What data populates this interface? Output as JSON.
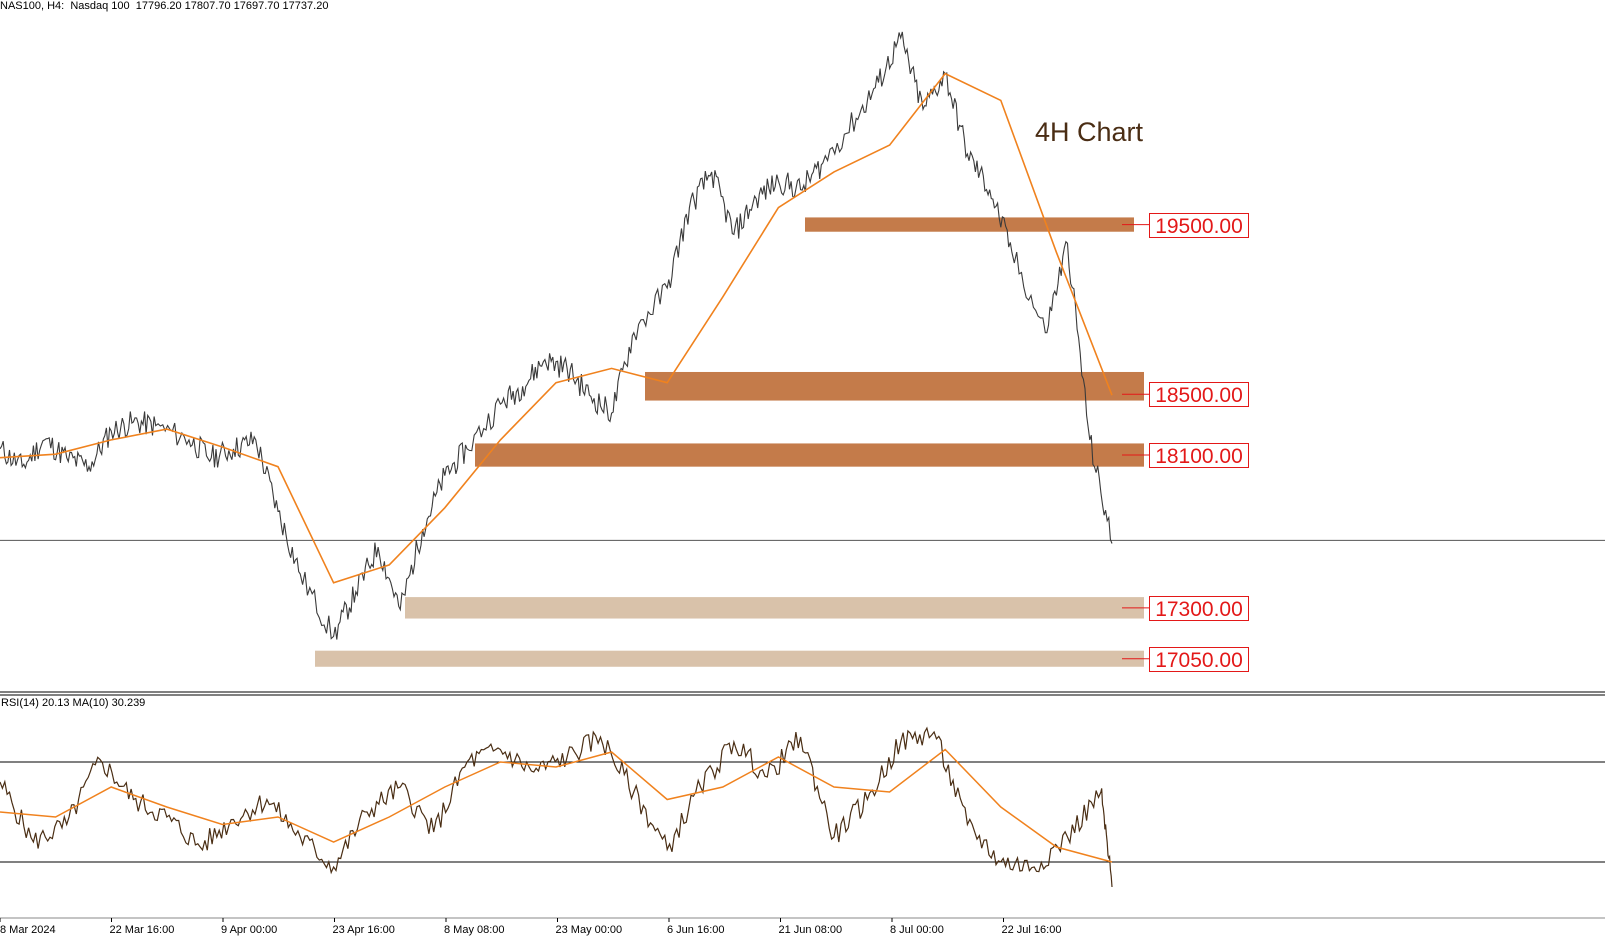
{
  "chart_header": {
    "symbol_line": "NAS100, H4:  Nasdaq 100  17796.20 17807.70 17697.70 17737.20"
  },
  "annotation": {
    "title": "4H Chart"
  },
  "colors": {
    "zone_dark": "#c47b4a",
    "zone_light": "#d9c2aa",
    "price": "#3a3a3a",
    "ma": "#f0821e",
    "rsi": "#4a2e14",
    "rsi_ma": "#f0821e",
    "level_label": "#e31818"
  },
  "chart_data": [
    {
      "type": "line",
      "name": "price",
      "title": "NAS100, H4: Nasdaq 100",
      "ohlc_last": {
        "open": 17796.2,
        "high": 17807.7,
        "low": 17697.7,
        "close": 17737.2
      },
      "x_ticks": [
        "8 Mar 2024",
        "22 Mar 16:00",
        "9 Apr 00:00",
        "23 Apr 16:00",
        "8 May 08:00",
        "23 May 00:00",
        "6 Jun 16:00",
        "21 Jun 08:00",
        "8 Jul 00:00",
        "22 Jul 16:00"
      ],
      "ylim": [
        16900,
        20650
      ],
      "current_price_line": 17737.2,
      "zones": [
        {
          "label": "19500.00",
          "low": 19465,
          "high": 19545,
          "tone": "dark"
        },
        {
          "label": "18500.00",
          "low": 18520,
          "high": 18680,
          "tone": "dark"
        },
        {
          "label": "18100.00",
          "low": 18150,
          "high": 18280,
          "tone": "dark"
        },
        {
          "label": "17300.00",
          "low": 17300,
          "high": 17420,
          "tone": "light"
        },
        {
          "label": "17050.00",
          "low": 17030,
          "high": 17120,
          "tone": "light"
        }
      ],
      "series": [
        {
          "x": [
            0,
            0.02,
            0.04,
            0.06,
            0.08,
            0.1,
            0.12,
            0.14,
            0.17,
            0.19,
            0.21,
            0.23,
            0.25,
            0.27,
            0.3,
            0.32,
            0.34,
            0.36,
            0.38,
            0.4,
            0.42,
            0.45,
            0.47,
            0.49,
            0.51,
            0.53,
            0.55,
            0.57,
            0.6,
            0.62,
            0.64,
            0.66,
            0.68,
            0.7,
            0.72,
            0.74,
            0.77,
            0.79,
            0.81,
            0.83,
            0.85,
            0.87,
            0.89,
            0.91,
            0.94,
            0.96,
            0.98,
            1.0
          ],
          "values": [
            18250,
            18150,
            18300,
            18200,
            18150,
            18350,
            18400,
            18380,
            18300,
            18200,
            18250,
            18300,
            17900,
            17550,
            17200,
            17450,
            17700,
            17350,
            17800,
            18100,
            18250,
            18500,
            18600,
            18750,
            18700,
            18550,
            18450,
            18900,
            19150,
            19600,
            19800,
            19450,
            19650,
            19750,
            19700,
            19850,
            20100,
            20300,
            20550,
            20150,
            20350,
            19900,
            19700,
            19350,
            18900,
            19400,
            18300,
            17720
          ]
        },
        {
          "name": "MA",
          "x": [
            0,
            0.05,
            0.1,
            0.15,
            0.2,
            0.25,
            0.3,
            0.35,
            0.4,
            0.45,
            0.5,
            0.55,
            0.6,
            0.65,
            0.7,
            0.75,
            0.8,
            0.85,
            0.9,
            0.95,
            1.0
          ],
          "values": [
            18200,
            18220,
            18300,
            18360,
            18260,
            18150,
            17500,
            17600,
            17920,
            18300,
            18620,
            18700,
            18620,
            19100,
            19600,
            19800,
            19950,
            20350,
            20200,
            19350,
            18550
          ]
        }
      ]
    },
    {
      "type": "line",
      "name": "rsi",
      "title": "RSI(14) 20.13 MA(10) 30.239",
      "ylim": [
        10,
        90
      ],
      "levels": [
        70,
        30
      ],
      "series": [
        {
          "name": "RSI(14)",
          "x": [
            0,
            0.03,
            0.06,
            0.09,
            0.12,
            0.15,
            0.18,
            0.21,
            0.24,
            0.27,
            0.3,
            0.33,
            0.36,
            0.39,
            0.42,
            0.45,
            0.48,
            0.51,
            0.54,
            0.57,
            0.6,
            0.63,
            0.66,
            0.69,
            0.72,
            0.75,
            0.78,
            0.81,
            0.84,
            0.87,
            0.9,
            0.93,
            0.96,
            0.99,
            1.0
          ],
          "values": [
            62,
            38,
            45,
            71,
            55,
            48,
            36,
            47,
            55,
            40,
            28,
            50,
            60,
            42,
            70,
            75,
            66,
            72,
            80,
            58,
            35,
            60,
            78,
            64,
            80,
            40,
            55,
            78,
            82,
            45,
            30,
            28,
            40,
            58,
            20
          ]
        },
        {
          "name": "MA(10)",
          "x": [
            0,
            0.05,
            0.1,
            0.15,
            0.2,
            0.25,
            0.3,
            0.35,
            0.4,
            0.45,
            0.5,
            0.55,
            0.6,
            0.65,
            0.7,
            0.75,
            0.8,
            0.85,
            0.9,
            0.95,
            1.0
          ],
          "values": [
            50,
            48,
            60,
            52,
            45,
            48,
            38,
            48,
            60,
            70,
            68,
            74,
            55,
            60,
            72,
            60,
            58,
            75,
            52,
            36,
            30
          ]
        }
      ]
    }
  ]
}
